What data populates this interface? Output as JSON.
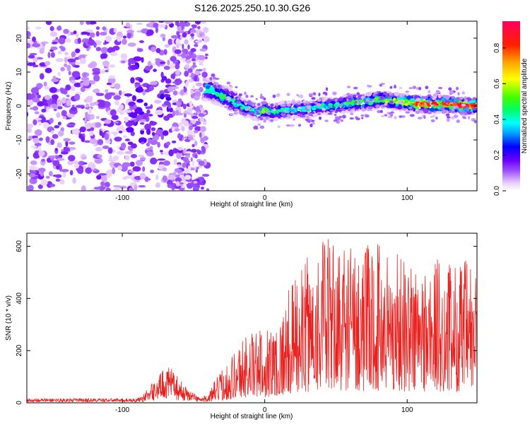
{
  "title": "S126.2025.250.10.30.G26",
  "chart_data": [
    {
      "type": "heatmap",
      "name": "spectrogram",
      "xlabel": "Height of straight line (km)",
      "ylabel": "Frequency (Hz)",
      "xlim": [
        -167,
        149
      ],
      "ylim": [
        -25,
        25
      ],
      "xticks": [
        -100,
        0,
        100
      ],
      "xtick_labels": [
        "-100",
        "0",
        "100"
      ],
      "yticks": [
        -20,
        -10,
        0,
        10,
        20
      ],
      "ytick_labels": [
        "-20",
        "-10",
        "0",
        "10",
        "20"
      ],
      "colorbar": {
        "label": "Normalized spectral amplitude",
        "range": [
          0,
          0.95
        ],
        "ticks": [
          0.0,
          0.2,
          0.4,
          0.6,
          0.8
        ],
        "tick_labels": [
          "0.0",
          "0.2",
          "0.4",
          "0.6",
          "0.8"
        ],
        "colors": [
          "#ffffff",
          "#e6c8ff",
          "#9a4dff",
          "#6a00ff",
          "#0000ff",
          "#00a0ff",
          "#00ffff",
          "#00ff60",
          "#40ff00",
          "#ffff00",
          "#ffa000",
          "#ff2000",
          "#ff0060"
        ]
      },
      "ridge": {
        "description": "frequency-height ridge of peak amplitude",
        "x": [
          -40,
          -35,
          -30,
          -25,
          -20,
          -15,
          -10,
          -5,
          0,
          5,
          10,
          20,
          30,
          40,
          50,
          60,
          70,
          80,
          90,
          100,
          110,
          120,
          130,
          140,
          148
        ],
        "y": [
          5,
          4,
          3,
          2,
          1,
          -0.5,
          -1,
          -2,
          -1,
          -2,
          -1.5,
          -1,
          -1,
          0,
          0,
          1,
          1,
          2,
          1.5,
          1,
          0.5,
          0.5,
          0.5,
          0,
          0
        ],
        "amplitude": [
          0.5,
          0.45,
          0.5,
          0.45,
          0.5,
          0.45,
          0.5,
          0.4,
          0.6,
          0.45,
          0.45,
          0.4,
          0.45,
          0.4,
          0.45,
          0.5,
          0.55,
          0.55,
          0.6,
          0.65,
          0.85,
          0.85,
          0.8,
          0.9,
          0.9
        ]
      }
    },
    {
      "type": "line",
      "name": "snr",
      "xlabel": "Height of straight line (km)",
      "ylabel": "SNR (10 * v/v)",
      "xlim": [
        -167,
        149
      ],
      "ylim": [
        0,
        650
      ],
      "xticks": [
        -100,
        0,
        100
      ],
      "xtick_labels": [
        "-100",
        "0",
        "100"
      ],
      "yticks": [
        0,
        200,
        400,
        600
      ],
      "ytick_labels": [
        "0",
        "200",
        "400",
        "600"
      ],
      "color": "#e8211f",
      "envelope": {
        "x": [
          -167,
          -90,
          -85,
          -80,
          -75,
          -70,
          -65,
          -60,
          -55,
          -50,
          -45,
          -40,
          -35,
          -30,
          -25,
          -20,
          -15,
          -10,
          -5,
          0,
          5,
          10,
          15,
          20,
          30,
          40,
          50,
          60,
          70,
          80,
          90,
          100,
          110,
          120,
          130,
          140,
          149
        ],
        "y": [
          15,
          15,
          35,
          70,
          100,
          140,
          130,
          90,
          60,
          40,
          20,
          30,
          80,
          120,
          160,
          200,
          240,
          260,
          250,
          280,
          280,
          300,
          380,
          440,
          520,
          600,
          570,
          580,
          560,
          580,
          560,
          520,
          500,
          520,
          500,
          520,
          480
        ]
      }
    }
  ]
}
